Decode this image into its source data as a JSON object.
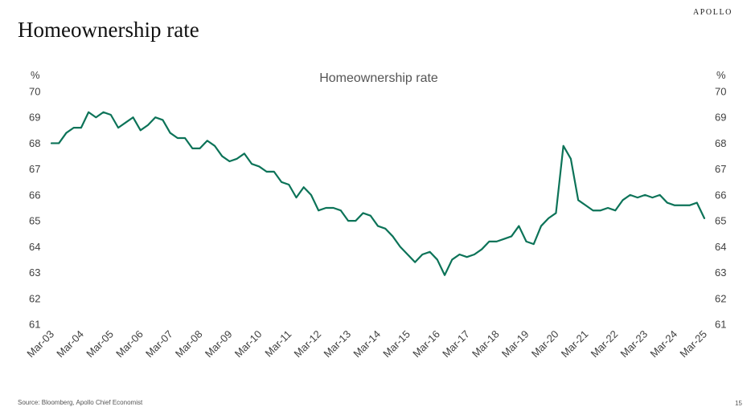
{
  "header": {
    "title": "Homeownership rate",
    "brand": "APOLLO"
  },
  "footer": {
    "source": "Source: Bloomberg, Apollo Chief Economist",
    "page_number": "15"
  },
  "colors": {
    "line": "#0c7358",
    "text": "#404040"
  },
  "chart_data": {
    "type": "line",
    "title": "Homeownership rate",
    "ylabel_left": "%",
    "ylabel_right": "%",
    "ylim": [
      61,
      70
    ],
    "yticks": [
      61,
      62,
      63,
      64,
      65,
      66,
      67,
      68,
      69,
      70
    ],
    "xtick_labels": [
      "Mar-03",
      "Mar-04",
      "Mar-05",
      "Mar-06",
      "Mar-07",
      "Mar-08",
      "Mar-09",
      "Mar-10",
      "Mar-11",
      "Mar-12",
      "Mar-13",
      "Mar-14",
      "Mar-15",
      "Mar-16",
      "Mar-17",
      "Mar-18",
      "Mar-19",
      "Mar-20",
      "Mar-21",
      "Mar-22",
      "Mar-23",
      "Mar-24",
      "Mar-25"
    ],
    "grid": false,
    "series": [
      {
        "values": [
          68.0,
          68.0,
          68.4,
          68.6,
          68.6,
          69.2,
          69.0,
          69.2,
          69.1,
          68.6,
          68.8,
          69.0,
          68.5,
          68.7,
          69.0,
          68.9,
          68.4,
          68.2,
          68.2,
          67.8,
          67.8,
          68.1,
          67.9,
          67.5,
          67.3,
          67.4,
          67.6,
          67.2,
          67.1,
          66.9,
          66.9,
          66.5,
          66.4,
          65.9,
          66.3,
          66.0,
          65.4,
          65.5,
          65.5,
          65.4,
          65.0,
          65.0,
          65.3,
          65.2,
          64.8,
          64.7,
          64.4,
          64.0,
          63.7,
          63.4,
          63.7,
          63.8,
          63.5,
          62.9,
          63.5,
          63.7,
          63.6,
          63.7,
          63.9,
          64.2,
          64.2,
          64.3,
          64.4,
          64.8,
          64.2,
          64.1,
          64.8,
          65.1,
          65.3,
          67.9,
          67.4,
          65.8,
          65.6,
          65.4,
          65.4,
          65.5,
          65.4,
          65.8,
          66.0,
          65.9,
          66.0,
          65.9,
          66.0,
          65.7,
          65.6,
          65.6,
          65.6,
          65.7,
          65.1
        ]
      }
    ]
  }
}
